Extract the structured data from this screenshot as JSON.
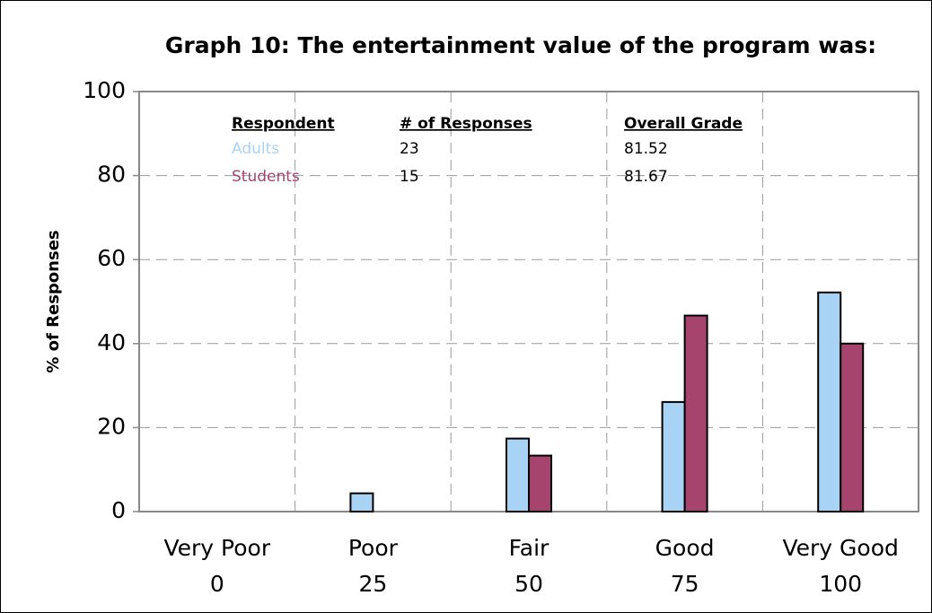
{
  "chart_data": {
    "type": "bar",
    "title": "Graph 10: The entertainment value of the program was:",
    "ylabel": "% of Responses",
    "categories": [
      "Very Poor",
      "Poor",
      "Fair",
      "Good",
      "Very Good"
    ],
    "category_scores": [
      0,
      25,
      50,
      75,
      100
    ],
    "series": [
      {
        "name": "Adults",
        "color": "#a9d3f5",
        "values": [
          0,
          4.35,
          17.39,
          26.09,
          52.17
        ],
        "responses": 23,
        "overall_grade": 81.52
      },
      {
        "name": "Students",
        "color": "#a6446e",
        "values": [
          0,
          0,
          13.33,
          46.67,
          40
        ],
        "responses": 15,
        "overall_grade": 81.67
      }
    ],
    "table_headers": [
      "Respondent",
      "# of Responses",
      "Overall Grade"
    ],
    "ylim": [
      0,
      100
    ],
    "yticks": [
      0,
      20,
      40,
      60,
      80,
      100
    ],
    "grid": true
  }
}
